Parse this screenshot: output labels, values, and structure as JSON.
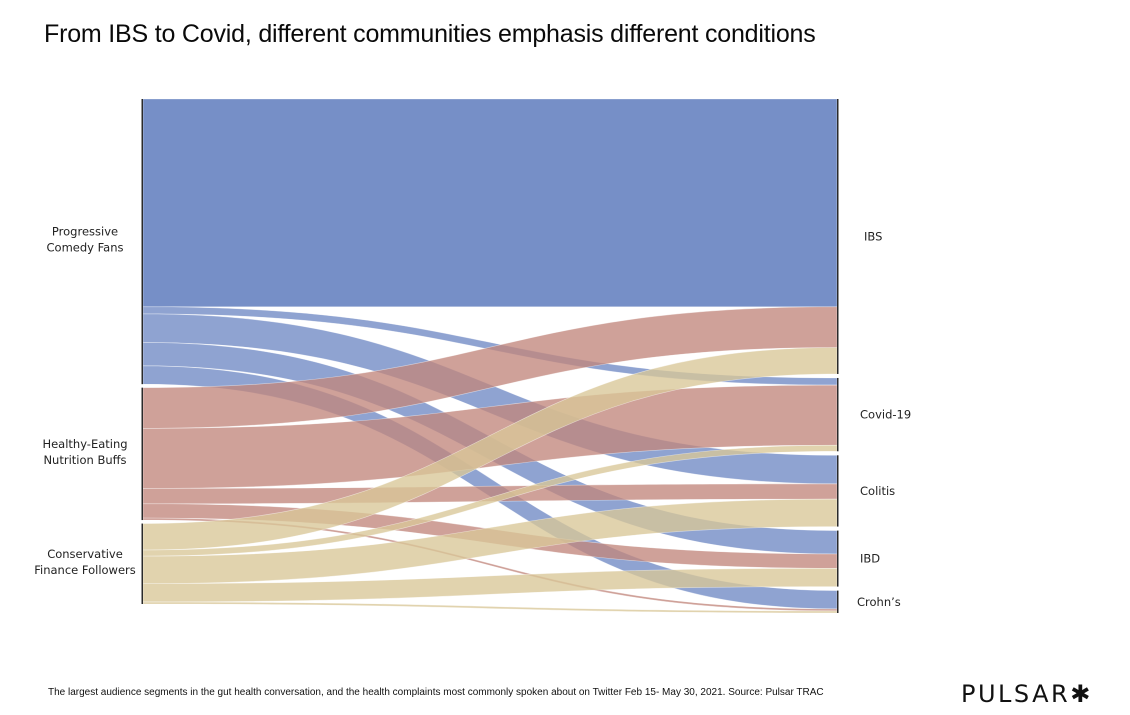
{
  "chart_data": {
    "type": "sankey",
    "title": "From IBS to Covid, different communities emphasis different conditions",
    "sources": [
      {
        "id": "progressive",
        "label_lines": [
          "Progressive",
          "Comedy Fans"
        ],
        "color": "#6f89c4"
      },
      {
        "id": "healthy",
        "label_lines": [
          "Healthy-Eating",
          "Nutrition Buffs"
        ],
        "color": "#c1877c"
      },
      {
        "id": "conservative",
        "label_lines": [
          "Conservative",
          "Finance Followers"
        ],
        "color": "#d8c697"
      }
    ],
    "targets": [
      {
        "id": "ibs",
        "label": "IBS"
      },
      {
        "id": "covid",
        "label": "Covid-19"
      },
      {
        "id": "colitis",
        "label": "Colitis"
      },
      {
        "id": "ibd",
        "label": "IBD"
      },
      {
        "id": "crohns",
        "label": "Crohn’s"
      }
    ],
    "links": [
      {
        "source": "progressive",
        "target": "ibs",
        "value": 204
      },
      {
        "source": "progressive",
        "target": "covid",
        "value": 7
      },
      {
        "source": "progressive",
        "target": "colitis",
        "value": 28
      },
      {
        "source": "progressive",
        "target": "ibd",
        "value": 23
      },
      {
        "source": "progressive",
        "target": "crohns",
        "value": 18
      },
      {
        "source": "healthy",
        "target": "ibs",
        "value": 40
      },
      {
        "source": "healthy",
        "target": "covid",
        "value": 59
      },
      {
        "source": "healthy",
        "target": "colitis",
        "value": 15
      },
      {
        "source": "healthy",
        "target": "ibd",
        "value": 14
      },
      {
        "source": "healthy",
        "target": "crohns",
        "value": 2
      },
      {
        "source": "conservative",
        "target": "ibs",
        "value": 26
      },
      {
        "source": "conservative",
        "target": "covid",
        "value": 6
      },
      {
        "source": "conservative",
        "target": "colitis",
        "value": 27
      },
      {
        "source": "conservative",
        "target": "ibd",
        "value": 18
      },
      {
        "source": "conservative",
        "target": "crohns",
        "value": 2
      }
    ],
    "units": "relative share of conversation (approx.)"
  },
  "footer": {
    "caption": "The largest audience segments in the gut health conversation, and the health complaints most commonly spoken about on Twitter Feb 15- May 30, 2021. Source: Pulsar TRAC",
    "logo_text": "PULSAR",
    "logo_icon": "asterisk-icon"
  }
}
